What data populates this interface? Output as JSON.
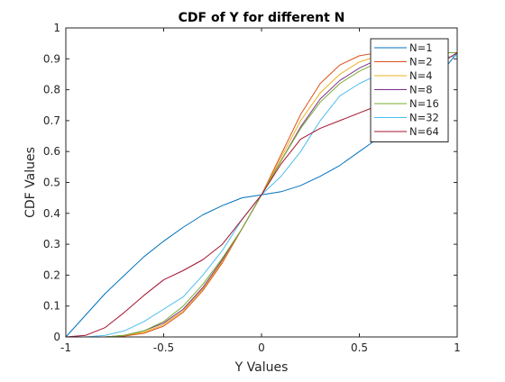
{
  "chart_data": {
    "type": "line",
    "title": "CDF of Y for different N",
    "xlabel": "Y Values",
    "ylabel": "CDF Values",
    "xlim": [
      -1,
      1
    ],
    "ylim": [
      0,
      1
    ],
    "xticks": [
      -1,
      -0.5,
      0,
      0.5,
      1
    ],
    "xtick_labels": [
      "-1",
      "-0.5",
      "0",
      "0.5",
      "1"
    ],
    "yticks": [
      0,
      0.1,
      0.2,
      0.3,
      0.4,
      0.5,
      0.6,
      0.7,
      0.8,
      0.9,
      1
    ],
    "ytick_labels": [
      "0",
      "0.1",
      "0.2",
      "0.3",
      "0.4",
      "0.5",
      "0.6",
      "0.7",
      "0.8",
      "0.9",
      "1"
    ],
    "grid": false,
    "legend_position": "top-right",
    "series": [
      {
        "name": "N=1",
        "color": "#0072BD",
        "x": [
          -1,
          -0.9,
          -0.8,
          -0.7,
          -0.6,
          -0.5,
          -0.4,
          -0.3,
          -0.2,
          -0.1,
          0,
          0.1,
          0.2,
          0.3,
          0.4,
          0.5,
          0.6,
          0.7,
          0.8,
          0.9,
          1
        ],
        "y": [
          0,
          0.07,
          0.14,
          0.2,
          0.26,
          0.31,
          0.355,
          0.395,
          0.425,
          0.45,
          0.46,
          0.47,
          0.49,
          0.52,
          0.555,
          0.6,
          0.645,
          0.7,
          0.76,
          0.84,
          0.92
        ]
      },
      {
        "name": "N=2",
        "color": "#D95319",
        "x": [
          -1,
          -0.9,
          -0.8,
          -0.7,
          -0.6,
          -0.5,
          -0.4,
          -0.3,
          -0.2,
          -0.1,
          0,
          0.1,
          0.2,
          0.3,
          0.4,
          0.5,
          0.6,
          0.7,
          0.8,
          0.9,
          1
        ],
        "y": [
          0,
          0,
          0,
          0.003,
          0.012,
          0.035,
          0.08,
          0.15,
          0.24,
          0.35,
          0.46,
          0.59,
          0.72,
          0.82,
          0.88,
          0.91,
          0.92,
          0.92,
          0.92,
          0.92,
          0.92
        ]
      },
      {
        "name": "N=4",
        "color": "#EDB120",
        "x": [
          -1,
          -0.9,
          -0.8,
          -0.7,
          -0.6,
          -0.5,
          -0.4,
          -0.3,
          -0.2,
          -0.1,
          0,
          0.1,
          0.2,
          0.3,
          0.4,
          0.5,
          0.6,
          0.7,
          0.8,
          0.9,
          1
        ],
        "y": [
          0,
          0,
          0,
          0.005,
          0.015,
          0.04,
          0.085,
          0.155,
          0.245,
          0.35,
          0.46,
          0.58,
          0.7,
          0.79,
          0.85,
          0.89,
          0.91,
          0.915,
          0.92,
          0.92,
          0.92
        ]
      },
      {
        "name": "N=8",
        "color": "#7E2F8E",
        "x": [
          -1,
          -0.9,
          -0.8,
          -0.7,
          -0.6,
          -0.5,
          -0.4,
          -0.3,
          -0.2,
          -0.1,
          0,
          0.1,
          0.2,
          0.3,
          0.4,
          0.5,
          0.6,
          0.7,
          0.8,
          0.9,
          1
        ],
        "y": [
          0,
          0,
          0,
          0.005,
          0.02,
          0.045,
          0.09,
          0.16,
          0.25,
          0.35,
          0.46,
          0.57,
          0.68,
          0.77,
          0.83,
          0.87,
          0.9,
          0.91,
          0.915,
          0.92,
          0.92
        ]
      },
      {
        "name": "N=16",
        "color": "#77AC30",
        "x": [
          -1,
          -0.9,
          -0.8,
          -0.7,
          -0.6,
          -0.5,
          -0.4,
          -0.3,
          -0.2,
          -0.1,
          0,
          0.1,
          0.2,
          0.3,
          0.4,
          0.5,
          0.6,
          0.7,
          0.8,
          0.9,
          1
        ],
        "y": [
          0,
          0,
          0,
          0.005,
          0.02,
          0.05,
          0.1,
          0.17,
          0.255,
          0.35,
          0.46,
          0.57,
          0.675,
          0.76,
          0.82,
          0.86,
          0.89,
          0.905,
          0.915,
          0.92,
          0.92
        ]
      },
      {
        "name": "N=32",
        "color": "#4DBEEE",
        "x": [
          -1,
          -0.9,
          -0.8,
          -0.7,
          -0.6,
          -0.5,
          -0.4,
          -0.3,
          -0.2,
          -0.1,
          0,
          0.1,
          0.2,
          0.3,
          0.4,
          0.5,
          0.6,
          0.7,
          0.8,
          0.9,
          1
        ],
        "y": [
          0,
          0,
          0.005,
          0.02,
          0.05,
          0.09,
          0.13,
          0.2,
          0.28,
          0.38,
          0.46,
          0.52,
          0.6,
          0.7,
          0.78,
          0.82,
          0.85,
          0.87,
          0.89,
          0.9,
          0.91
        ]
      },
      {
        "name": "N=64",
        "color": "#A2142F",
        "x": [
          -1,
          -0.9,
          -0.8,
          -0.7,
          -0.6,
          -0.5,
          -0.4,
          -0.3,
          -0.2,
          -0.1,
          0,
          0.1,
          0.2,
          0.3,
          0.4,
          0.5,
          0.6,
          0.7,
          0.8,
          0.9,
          1
        ],
        "y": [
          0,
          0.005,
          0.03,
          0.08,
          0.135,
          0.185,
          0.215,
          0.25,
          0.3,
          0.38,
          0.46,
          0.56,
          0.64,
          0.675,
          0.7,
          0.725,
          0.75,
          0.79,
          0.84,
          0.88,
          0.92
        ]
      }
    ]
  }
}
